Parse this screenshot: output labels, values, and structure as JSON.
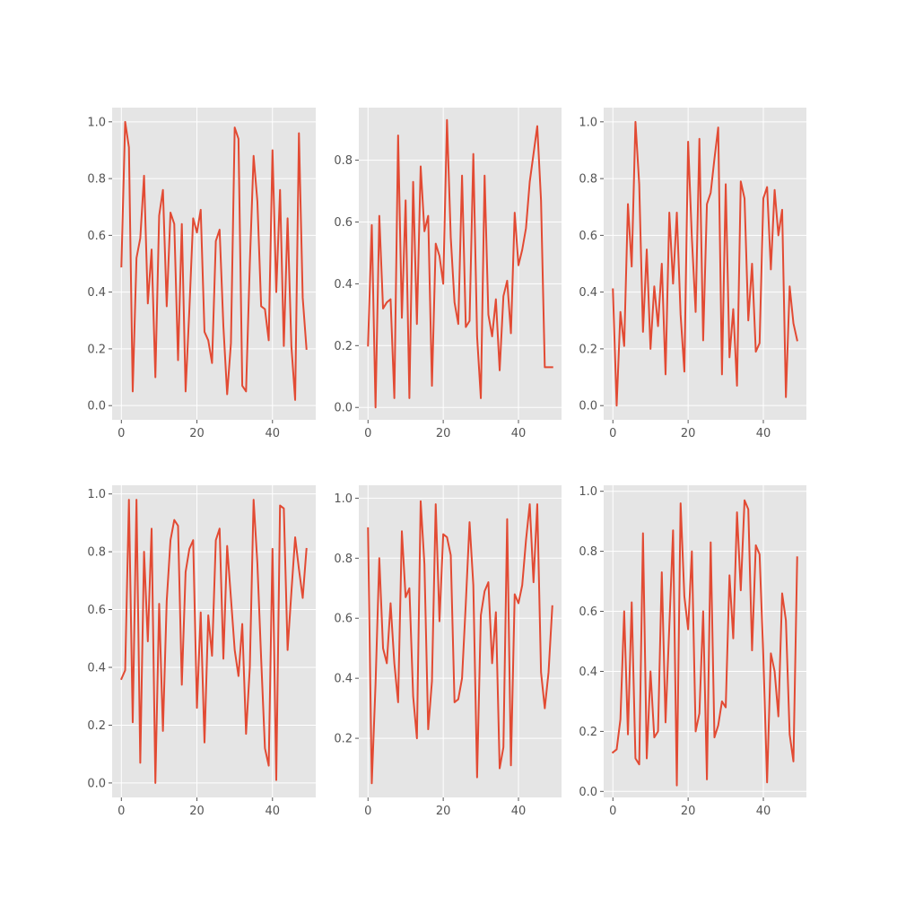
{
  "chart_data": [
    {
      "type": "line",
      "x": [
        0,
        1,
        2,
        3,
        4,
        5,
        6,
        7,
        8,
        9,
        10,
        11,
        12,
        13,
        14,
        15,
        16,
        17,
        18,
        19,
        20,
        21,
        22,
        23,
        24,
        25,
        26,
        27,
        28,
        29,
        30,
        31,
        32,
        33,
        34,
        35,
        36,
        37,
        38,
        39,
        40,
        41,
        42,
        43,
        44,
        45,
        46,
        47,
        48,
        49
      ],
      "series": [
        {
          "values": [
            0.49,
            1.0,
            0.91,
            0.05,
            0.52,
            0.59,
            0.81,
            0.36,
            0.55,
            0.1,
            0.67,
            0.76,
            0.35,
            0.68,
            0.64,
            0.16,
            0.64,
            0.05,
            0.34,
            0.66,
            0.61,
            0.69,
            0.26,
            0.23,
            0.15,
            0.58,
            0.62,
            0.28,
            0.04,
            0.22,
            0.98,
            0.94,
            0.07,
            0.05,
            0.5,
            0.88,
            0.72,
            0.35,
            0.34,
            0.23,
            0.9,
            0.4,
            0.76,
            0.21,
            0.66,
            0.21,
            0.02,
            0.96,
            0.38,
            0.2
          ]
        }
      ],
      "xlim": [
        -2.45,
        51.45
      ],
      "ylim": [
        -0.05,
        1.05
      ],
      "xticks": [
        0,
        20,
        40
      ],
      "yticks": [
        0.0,
        0.2,
        0.4,
        0.6,
        0.8,
        1.0
      ],
      "xtick_labels": [
        "0",
        "20",
        "40"
      ],
      "ytick_labels": [
        "0.0",
        "0.2",
        "0.4",
        "0.6",
        "0.8",
        "1.0"
      ],
      "grid": true,
      "line_color": "#E24A33",
      "bg_color": "#E5E5E5"
    },
    {
      "type": "line",
      "x": [
        0,
        1,
        2,
        3,
        4,
        5,
        6,
        7,
        8,
        9,
        10,
        11,
        12,
        13,
        14,
        15,
        16,
        17,
        18,
        19,
        20,
        21,
        22,
        23,
        24,
        25,
        26,
        27,
        28,
        29,
        30,
        31,
        32,
        33,
        34,
        35,
        36,
        37,
        38,
        39,
        40,
        41,
        42,
        43,
        44,
        45,
        46,
        47,
        48,
        49
      ],
      "series": [
        {
          "values": [
            0.2,
            0.59,
            0.0,
            0.62,
            0.32,
            0.34,
            0.35,
            0.03,
            0.88,
            0.29,
            0.67,
            0.03,
            0.73,
            0.27,
            0.78,
            0.57,
            0.62,
            0.07,
            0.53,
            0.49,
            0.4,
            0.93,
            0.55,
            0.34,
            0.27,
            0.75,
            0.26,
            0.28,
            0.82,
            0.23,
            0.03,
            0.75,
            0.3,
            0.23,
            0.35,
            0.12,
            0.36,
            0.41,
            0.24,
            0.63,
            0.46,
            0.51,
            0.58,
            0.73,
            0.82,
            0.91,
            0.67,
            0.13,
            0.13,
            0.13
          ]
        }
      ],
      "xlim": [
        -2.45,
        51.45
      ],
      "ylim": [
        -0.04,
        0.97
      ],
      "xticks": [
        0,
        20,
        40
      ],
      "yticks": [
        0.0,
        0.2,
        0.4,
        0.6,
        0.8
      ],
      "xtick_labels": [
        "0",
        "20",
        "40"
      ],
      "ytick_labels": [
        "0.0",
        "0.2",
        "0.4",
        "0.6",
        "0.8"
      ],
      "grid": true,
      "line_color": "#E24A33",
      "bg_color": "#E5E5E5"
    },
    {
      "type": "line",
      "x": [
        0,
        1,
        2,
        3,
        4,
        5,
        6,
        7,
        8,
        9,
        10,
        11,
        12,
        13,
        14,
        15,
        16,
        17,
        18,
        19,
        20,
        21,
        22,
        23,
        24,
        25,
        26,
        27,
        28,
        29,
        30,
        31,
        32,
        33,
        34,
        35,
        36,
        37,
        38,
        39,
        40,
        41,
        42,
        43,
        44,
        45,
        46,
        47,
        48,
        49
      ],
      "series": [
        {
          "values": [
            0.41,
            0.0,
            0.33,
            0.21,
            0.71,
            0.49,
            1.0,
            0.78,
            0.26,
            0.55,
            0.2,
            0.42,
            0.28,
            0.5,
            0.11,
            0.68,
            0.43,
            0.68,
            0.32,
            0.12,
            0.93,
            0.59,
            0.33,
            0.94,
            0.23,
            0.71,
            0.75,
            0.87,
            0.98,
            0.11,
            0.78,
            0.17,
            0.34,
            0.07,
            0.79,
            0.73,
            0.3,
            0.5,
            0.19,
            0.22,
            0.73,
            0.77,
            0.48,
            0.76,
            0.6,
            0.69,
            0.03,
            0.42,
            0.29,
            0.23
          ]
        }
      ],
      "xlim": [
        -2.45,
        51.45
      ],
      "ylim": [
        -0.05,
        1.05
      ],
      "xticks": [
        0,
        20,
        40
      ],
      "yticks": [
        0.0,
        0.2,
        0.4,
        0.6,
        0.8,
        1.0
      ],
      "xtick_labels": [
        "0",
        "20",
        "40"
      ],
      "ytick_labels": [
        "0.0",
        "0.2",
        "0.4",
        "0.6",
        "0.8",
        "1.0"
      ],
      "grid": true,
      "line_color": "#E24A33",
      "bg_color": "#E5E5E5"
    },
    {
      "type": "line",
      "x": [
        0,
        1,
        2,
        3,
        4,
        5,
        6,
        7,
        8,
        9,
        10,
        11,
        12,
        13,
        14,
        15,
        16,
        17,
        18,
        19,
        20,
        21,
        22,
        23,
        24,
        25,
        26,
        27,
        28,
        29,
        30,
        31,
        32,
        33,
        34,
        35,
        36,
        37,
        38,
        39,
        40,
        41,
        42,
        43,
        44,
        45,
        46,
        47,
        48,
        49
      ],
      "series": [
        {
          "values": [
            0.36,
            0.39,
            0.98,
            0.21,
            0.98,
            0.07,
            0.8,
            0.49,
            0.88,
            0.0,
            0.62,
            0.18,
            0.63,
            0.84,
            0.91,
            0.89,
            0.34,
            0.73,
            0.81,
            0.84,
            0.26,
            0.59,
            0.14,
            0.58,
            0.44,
            0.84,
            0.88,
            0.43,
            0.82,
            0.64,
            0.46,
            0.37,
            0.55,
            0.17,
            0.4,
            0.98,
            0.76,
            0.43,
            0.12,
            0.06,
            0.81,
            0.01,
            0.96,
            0.95,
            0.46,
            0.66,
            0.85,
            0.74,
            0.64,
            0.81
          ]
        }
      ],
      "xlim": [
        -2.45,
        51.45
      ],
      "ylim": [
        -0.05,
        1.03
      ],
      "xticks": [
        0,
        20,
        40
      ],
      "yticks": [
        0.0,
        0.2,
        0.4,
        0.6,
        0.8,
        1.0
      ],
      "xtick_labels": [
        "0",
        "20",
        "40"
      ],
      "ytick_labels": [
        "0.0",
        "0.2",
        "0.4",
        "0.6",
        "0.8",
        "1.0"
      ],
      "grid": true,
      "line_color": "#E24A33",
      "bg_color": "#E5E5E5"
    },
    {
      "type": "line",
      "x": [
        0,
        1,
        2,
        3,
        4,
        5,
        6,
        7,
        8,
        9,
        10,
        11,
        12,
        13,
        14,
        15,
        16,
        17,
        18,
        19,
        20,
        21,
        22,
        23,
        24,
        25,
        26,
        27,
        28,
        29,
        30,
        31,
        32,
        33,
        34,
        35,
        36,
        37,
        38,
        39,
        40,
        41,
        42,
        43,
        44,
        45,
        46,
        47,
        48,
        49
      ],
      "series": [
        {
          "values": [
            0.9,
            0.05,
            0.38,
            0.8,
            0.5,
            0.45,
            0.65,
            0.45,
            0.32,
            0.89,
            0.67,
            0.7,
            0.34,
            0.2,
            0.99,
            0.78,
            0.23,
            0.39,
            0.98,
            0.59,
            0.88,
            0.87,
            0.81,
            0.32,
            0.33,
            0.4,
            0.65,
            0.92,
            0.71,
            0.07,
            0.61,
            0.69,
            0.72,
            0.45,
            0.62,
            0.1,
            0.17,
            0.93,
            0.11,
            0.68,
            0.65,
            0.71,
            0.86,
            0.98,
            0.72,
            0.98,
            0.42,
            0.3,
            0.42,
            0.64
          ]
        }
      ],
      "xlim": [
        -2.45,
        51.45
      ],
      "ylim": [
        0.003,
        1.043
      ],
      "xticks": [
        0,
        20,
        40
      ],
      "yticks": [
        0.2,
        0.4,
        0.6,
        0.8,
        1.0
      ],
      "xtick_labels": [
        "0",
        "20",
        "40"
      ],
      "ytick_labels": [
        "0.2",
        "0.4",
        "0.6",
        "0.8",
        "1.0"
      ],
      "grid": true,
      "line_color": "#E24A33",
      "bg_color": "#E5E5E5"
    },
    {
      "type": "line",
      "x": [
        0,
        1,
        2,
        3,
        4,
        5,
        6,
        7,
        8,
        9,
        10,
        11,
        12,
        13,
        14,
        15,
        16,
        17,
        18,
        19,
        20,
        21,
        22,
        23,
        24,
        25,
        26,
        27,
        28,
        29,
        30,
        31,
        32,
        33,
        34,
        35,
        36,
        37,
        38,
        39,
        40,
        41,
        42,
        43,
        44,
        45,
        46,
        47,
        48,
        49
      ],
      "series": [
        {
          "values": [
            0.13,
            0.14,
            0.24,
            0.6,
            0.19,
            0.63,
            0.11,
            0.09,
            0.86,
            0.11,
            0.4,
            0.18,
            0.2,
            0.73,
            0.23,
            0.55,
            0.87,
            0.02,
            0.96,
            0.65,
            0.54,
            0.8,
            0.2,
            0.26,
            0.6,
            0.04,
            0.83,
            0.18,
            0.22,
            0.3,
            0.28,
            0.72,
            0.51,
            0.93,
            0.67,
            0.97,
            0.94,
            0.47,
            0.82,
            0.79,
            0.45,
            0.03,
            0.46,
            0.4,
            0.25,
            0.66,
            0.57,
            0.19,
            0.1,
            0.78
          ]
        }
      ],
      "xlim": [
        -2.45,
        51.45
      ],
      "ylim": [
        -0.02,
        1.02
      ],
      "xticks": [
        0,
        20,
        40
      ],
      "yticks": [
        0.0,
        0.2,
        0.4,
        0.6,
        0.8,
        1.0
      ],
      "xtick_labels": [
        "0",
        "20",
        "40"
      ],
      "ytick_labels": [
        "0.0",
        "0.2",
        "0.4",
        "0.6",
        "0.8",
        "1.0"
      ],
      "grid": true,
      "line_color": "#E24A33",
      "bg_color": "#E5E5E5"
    }
  ]
}
